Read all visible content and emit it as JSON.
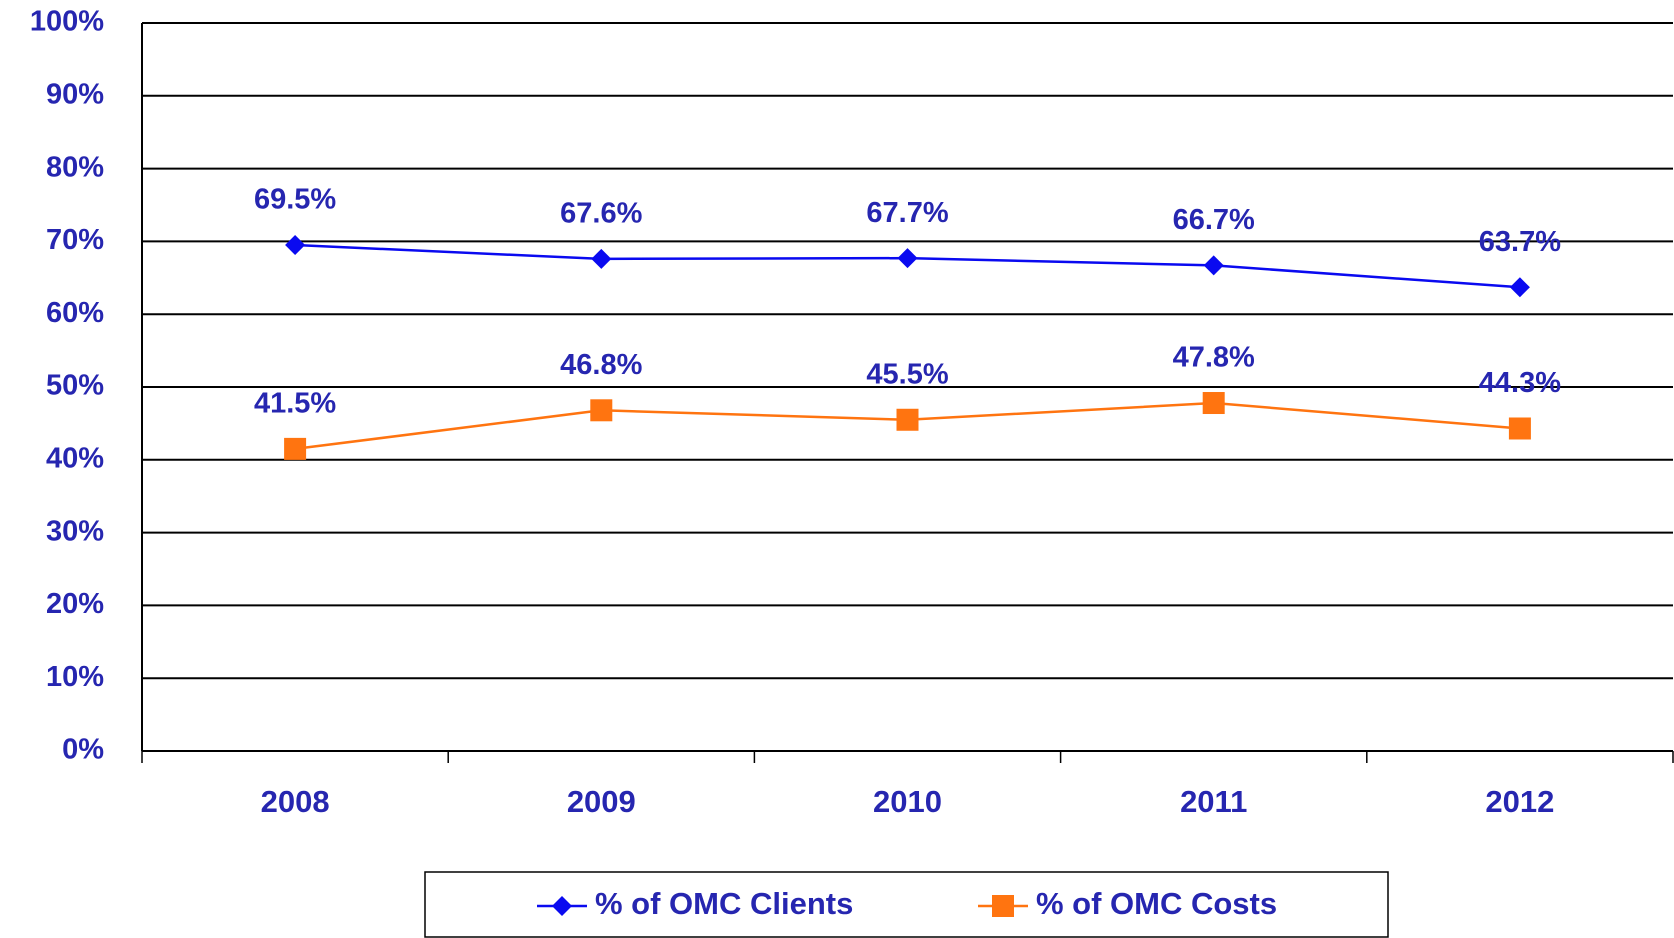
{
  "chart_data": {
    "type": "line",
    "categories": [
      "2008",
      "2009",
      "2010",
      "2011",
      "2012"
    ],
    "series": [
      {
        "name": "% of OMC Clients",
        "color": "#0a0af0",
        "marker": "diamond",
        "values": [
          69.5,
          67.6,
          67.7,
          66.7,
          63.7
        ],
        "value_labels": [
          "69.5%",
          "67.6%",
          "67.7%",
          "66.7%",
          "63.7%"
        ]
      },
      {
        "name": "% of OMC Costs",
        "color": "#ff7410",
        "marker": "square",
        "values": [
          41.5,
          46.8,
          45.5,
          47.8,
          44.3
        ],
        "value_labels": [
          "41.5%",
          "46.8%",
          "45.5%",
          "47.8%",
          "44.3%"
        ]
      }
    ],
    "ylim": [
      0,
      100
    ],
    "yticks": [
      {
        "value": 0,
        "label": "0%"
      },
      {
        "value": 10,
        "label": "10%"
      },
      {
        "value": 20,
        "label": "20%"
      },
      {
        "value": 30,
        "label": "30%"
      },
      {
        "value": 40,
        "label": "40%"
      },
      {
        "value": 50,
        "label": "50%"
      },
      {
        "value": 60,
        "label": "60%"
      },
      {
        "value": 70,
        "label": "70%"
      },
      {
        "value": 80,
        "label": "80%"
      },
      {
        "value": 90,
        "label": "90%"
      },
      {
        "value": 100,
        "label": "100%"
      }
    ],
    "grid": true,
    "legend": "bottom"
  }
}
